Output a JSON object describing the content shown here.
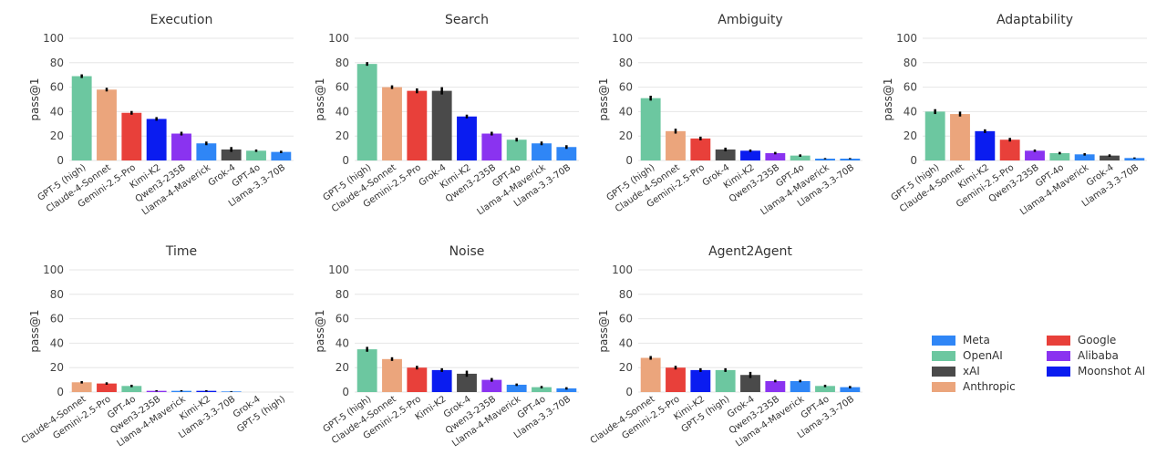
{
  "colors": {
    "Meta": "#2f86f6",
    "OpenAI": "#6cc7a0",
    "xAI": "#4a4a4a",
    "Anthropic": "#eba57c",
    "Google": "#e8403a",
    "Alibaba": "#8a33f0",
    "Moonshot AI": "#0a1cf0"
  },
  "legend": {
    "items": [
      {
        "label": "Meta",
        "color_key": "Meta"
      },
      {
        "label": "OpenAI",
        "color_key": "OpenAI"
      },
      {
        "label": "xAI",
        "color_key": "xAI"
      },
      {
        "label": "Anthropic",
        "color_key": "Anthropic"
      },
      {
        "label": "Google",
        "color_key": "Google"
      },
      {
        "label": "Alibaba",
        "color_key": "Alibaba"
      },
      {
        "label": "Moonshot AI",
        "color_key": "Moonshot AI"
      }
    ]
  },
  "chart_data": [
    {
      "type": "bar",
      "title": "Execution",
      "ylabel": "pass@1",
      "ylim": [
        0,
        100
      ],
      "yticks": [
        0,
        20,
        40,
        60,
        80,
        100
      ],
      "categories": [
        "GPT-5 (high)",
        "Claude-4-Sonnet",
        "Gemini-2.5-Pro",
        "Kimi-K2",
        "Qwen3-235B",
        "Llama-4-Maverick",
        "Grok-4",
        "GPT-4o",
        "Llama-3.3-70B"
      ],
      "values": [
        69,
        58,
        39,
        34,
        22,
        14,
        9,
        8,
        7
      ],
      "errors": [
        1.5,
        1.5,
        1.5,
        1.5,
        1.5,
        1.5,
        2,
        1,
        1
      ],
      "providers": [
        "OpenAI",
        "Anthropic",
        "Google",
        "Moonshot AI",
        "Alibaba",
        "Meta",
        "xAI",
        "OpenAI",
        "Meta"
      ]
    },
    {
      "type": "bar",
      "title": "Search",
      "ylabel": "pass@1",
      "ylim": [
        0,
        100
      ],
      "yticks": [
        0,
        20,
        40,
        60,
        80,
        100
      ],
      "categories": [
        "GPT-5 (high)",
        "Claude-4-Sonnet",
        "Gemini-2.5-Pro",
        "Grok-4",
        "Kimi-K2",
        "Qwen3-235B",
        "GPT-4o",
        "Llama-4-Maverick",
        "Llama-3.3-70B"
      ],
      "values": [
        79,
        60,
        57,
        57,
        36,
        22,
        17,
        14,
        11
      ],
      "errors": [
        1.5,
        1.5,
        2,
        3,
        1.5,
        1.5,
        1.5,
        1.5,
        1.5
      ],
      "providers": [
        "OpenAI",
        "Anthropic",
        "Google",
        "xAI",
        "Moonshot AI",
        "Alibaba",
        "OpenAI",
        "Meta",
        "Meta"
      ]
    },
    {
      "type": "bar",
      "title": "Ambiguity",
      "ylabel": "pass@1",
      "ylim": [
        0,
        100
      ],
      "yticks": [
        0,
        20,
        40,
        60,
        80,
        100
      ],
      "categories": [
        "GPT-5 (high)",
        "Claude-4-Sonnet",
        "Gemini-2.5-Pro",
        "Grok-4",
        "Kimi-K2",
        "Qwen3-235B",
        "GPT-4o",
        "Llama-4-Maverick",
        "Llama-3.3-70B"
      ],
      "values": [
        51,
        24,
        18,
        9,
        8,
        6,
        4,
        1.5,
        1.5
      ],
      "errors": [
        2,
        2,
        1.5,
        1.5,
        1,
        1,
        1,
        0.5,
        0.5
      ],
      "providers": [
        "OpenAI",
        "Anthropic",
        "Google",
        "xAI",
        "Moonshot AI",
        "Alibaba",
        "OpenAI",
        "Meta",
        "Meta"
      ]
    },
    {
      "type": "bar",
      "title": "Adaptability",
      "ylabel": "pass@1",
      "ylim": [
        0,
        100
      ],
      "yticks": [
        0,
        20,
        40,
        60,
        80,
        100
      ],
      "categories": [
        "GPT-5 (high)",
        "Claude-4-Sonnet",
        "Kimi-K2",
        "Gemini-2.5-Pro",
        "Qwen3-235B",
        "GPT-4o",
        "Llama-4-Maverick",
        "Grok-4",
        "Llama-3.3-70B"
      ],
      "values": [
        40,
        38,
        24,
        17,
        8,
        6,
        5,
        4,
        2
      ],
      "errors": [
        2,
        2,
        1.5,
        1.5,
        1,
        1,
        1,
        1,
        0.5
      ],
      "providers": [
        "OpenAI",
        "Anthropic",
        "Moonshot AI",
        "Google",
        "Alibaba",
        "OpenAI",
        "Meta",
        "xAI",
        "Meta"
      ]
    },
    {
      "type": "bar",
      "title": "Time",
      "ylabel": "pass@1",
      "ylim": [
        0,
        100
      ],
      "yticks": [
        0,
        20,
        40,
        60,
        80,
        100
      ],
      "categories": [
        "Claude-4-Sonnet",
        "Gemini-2.5-Pro",
        "GPT-4o",
        "Qwen3-235B",
        "Llama-4-Maverick",
        "Kimi-K2",
        "Llama-3.3-70B",
        "Grok-4",
        "GPT-5 (high)"
      ],
      "values": [
        8,
        7,
        5,
        1,
        1,
        1,
        0.5,
        0,
        0
      ],
      "errors": [
        1,
        1,
        1,
        0.5,
        0.5,
        0.5,
        0.3,
        0,
        0
      ],
      "providers": [
        "Anthropic",
        "Google",
        "OpenAI",
        "Alibaba",
        "Meta",
        "Moonshot AI",
        "Meta",
        "xAI",
        "OpenAI"
      ]
    },
    {
      "type": "bar",
      "title": "Noise",
      "ylabel": "pass@1",
      "ylim": [
        0,
        100
      ],
      "yticks": [
        0,
        20,
        40,
        60,
        80,
        100
      ],
      "categories": [
        "GPT-5 (high)",
        "Claude-4-Sonnet",
        "Gemini-2.5-Pro",
        "Kimi-K2",
        "Grok-4",
        "Qwen3-235B",
        "Llama-4-Maverick",
        "GPT-4o",
        "Llama-3.3-70B"
      ],
      "values": [
        35,
        27,
        20,
        18,
        15,
        10,
        6,
        4,
        3
      ],
      "errors": [
        2,
        1.5,
        1.5,
        1.5,
        2.5,
        1.5,
        1,
        1,
        1
      ],
      "providers": [
        "OpenAI",
        "Anthropic",
        "Google",
        "Moonshot AI",
        "xAI",
        "Alibaba",
        "Meta",
        "OpenAI",
        "Meta"
      ]
    },
    {
      "type": "bar",
      "title": "Agent2Agent",
      "ylabel": "pass@1",
      "ylim": [
        0,
        100
      ],
      "yticks": [
        0,
        20,
        40,
        60,
        80,
        100
      ],
      "categories": [
        "Claude-4-Sonnet",
        "Gemini-2.5-Pro",
        "Kimi-K2",
        "GPT-5 (high)",
        "Grok-4",
        "Qwen3-235B",
        "Llama-4-Maverick",
        "GPT-4o",
        "Llama-3.3-70B"
      ],
      "values": [
        28,
        20,
        18,
        18,
        14,
        9,
        9,
        5,
        4
      ],
      "errors": [
        1.5,
        1.5,
        1.5,
        1.5,
        2.5,
        1,
        1,
        1,
        1
      ],
      "providers": [
        "Anthropic",
        "Google",
        "Moonshot AI",
        "OpenAI",
        "xAI",
        "Alibaba",
        "Meta",
        "OpenAI",
        "Meta"
      ]
    }
  ]
}
